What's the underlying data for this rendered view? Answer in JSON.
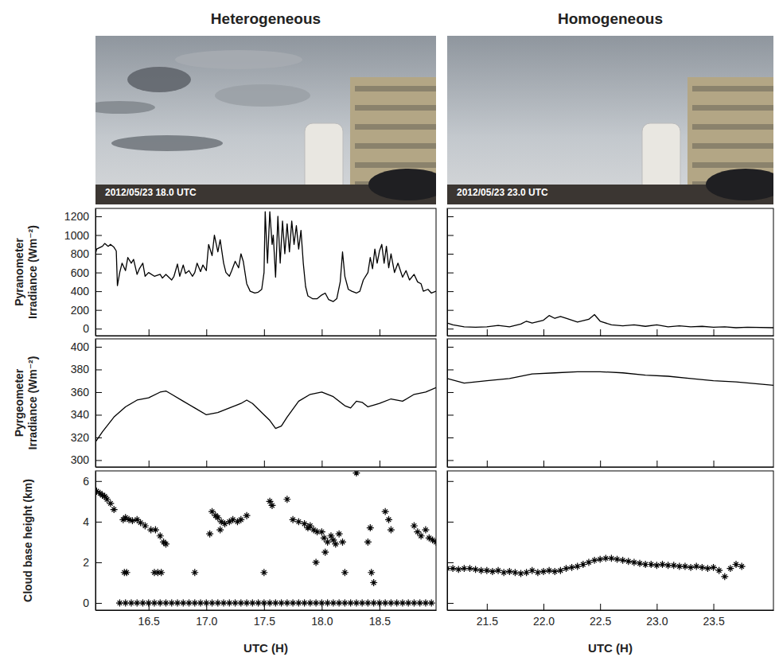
{
  "columns": [
    {
      "title": "Heterogeneous",
      "photo_caption": "2012/05/23 18.0 UTC"
    },
    {
      "title": "Homogeneous",
      "photo_caption": "2012/05/23 23.0 UTC"
    }
  ],
  "chart_data": [
    {
      "type": "line",
      "color": "#000000",
      "tick_labels": "y",
      "y_label": "Pyranometer Irradiance (Wm⁻²)",
      "xlim": [
        16.04,
        18.99
      ],
      "xticks": [
        16.5,
        17,
        17.5,
        18,
        18.5
      ],
      "ylim": [
        -75,
        1285
      ],
      "yticks": [
        0,
        200,
        400,
        600,
        800,
        1000,
        1200
      ],
      "x": [
        16.04,
        16.05,
        16.1,
        16.12,
        16.15,
        16.17,
        16.2,
        16.22,
        16.23,
        16.25,
        16.27,
        16.3,
        16.32,
        16.35,
        16.37,
        16.4,
        16.42,
        16.45,
        16.47,
        16.5,
        16.55,
        16.6,
        16.62,
        16.65,
        16.7,
        16.72,
        16.75,
        16.77,
        16.8,
        16.82,
        16.85,
        16.88,
        16.9,
        16.92,
        16.95,
        16.97,
        17.0,
        17.02,
        17.05,
        17.07,
        17.1,
        17.12,
        17.15,
        17.17,
        17.2,
        17.22,
        17.25,
        17.28,
        17.3,
        17.32,
        17.35,
        17.38,
        17.42,
        17.45,
        17.48,
        17.5,
        17.51,
        17.53,
        17.55,
        17.57,
        17.58,
        17.6,
        17.62,
        17.64,
        17.66,
        17.68,
        17.7,
        17.72,
        17.74,
        17.76,
        17.78,
        17.8,
        17.82,
        17.84,
        17.86,
        17.88,
        17.92,
        17.96,
        18.0,
        18.03,
        18.06,
        18.1,
        18.13,
        18.16,
        18.18,
        18.2,
        18.23,
        18.26,
        18.3,
        18.33,
        18.36,
        18.4,
        18.42,
        18.44,
        18.46,
        18.48,
        18.5,
        18.52,
        18.54,
        18.56,
        18.58,
        18.6,
        18.63,
        18.66,
        18.7,
        18.73,
        18.76,
        18.8,
        18.83,
        18.86,
        18.88,
        18.92,
        18.95,
        18.99
      ],
      "values": [
        800,
        850,
        880,
        910,
        880,
        900,
        870,
        830,
        460,
        600,
        700,
        620,
        760,
        700,
        740,
        580,
        640,
        700,
        560,
        600,
        560,
        580,
        540,
        580,
        520,
        560,
        690,
        560,
        680,
        590,
        620,
        560,
        600,
        700,
        610,
        680,
        620,
        900,
        780,
        1000,
        820,
        950,
        700,
        600,
        560,
        620,
        720,
        650,
        800,
        720,
        480,
        400,
        380,
        390,
        420,
        600,
        1250,
        700,
        1250,
        900,
        1000,
        550,
        1200,
        700,
        1150,
        800,
        1120,
        820,
        1150,
        900,
        1100,
        850,
        1050,
        700,
        450,
        350,
        320,
        320,
        360,
        380,
        310,
        290,
        320,
        500,
        820,
        560,
        420,
        400,
        380,
        400,
        520,
        600,
        760,
        640,
        850,
        700,
        830,
        900,
        700,
        880,
        650,
        800,
        600,
        700,
        550,
        620,
        520,
        580,
        500,
        480,
        400,
        420,
        380,
        400
      ]
    },
    {
      "type": "line",
      "color": "#000000",
      "tick_labels": false,
      "xlim": [
        21.15,
        24.03
      ],
      "xticks": [
        21.5,
        22,
        22.5,
        23,
        23.5
      ],
      "ylim": [
        -75,
        1285
      ],
      "yticks": [
        0,
        200,
        400,
        600,
        800,
        1000,
        1200
      ],
      "x": [
        21.15,
        21.2,
        21.3,
        21.4,
        21.5,
        21.6,
        21.7,
        21.8,
        21.85,
        21.9,
        22.0,
        22.05,
        22.1,
        22.15,
        22.2,
        22.3,
        22.4,
        22.45,
        22.5,
        22.6,
        22.7,
        22.8,
        22.9,
        23.0,
        23.1,
        23.2,
        23.3,
        23.4,
        23.5,
        23.6,
        23.7,
        23.8,
        24.03
      ],
      "values": [
        60,
        40,
        20,
        15,
        20,
        35,
        20,
        50,
        80,
        60,
        90,
        140,
        110,
        130,
        110,
        70,
        100,
        150,
        80,
        40,
        30,
        40,
        25,
        40,
        20,
        30,
        20,
        25,
        15,
        20,
        10,
        15,
        10
      ]
    },
    {
      "type": "line",
      "color": "#000000",
      "tick_labels": "y",
      "y_label": "Pyrgeometer Irradiance (Wm⁻²)",
      "xlim": [
        16.04,
        18.99
      ],
      "xticks": [
        16.5,
        17,
        17.5,
        18,
        18.5
      ],
      "ylim": [
        294,
        407
      ],
      "yticks": [
        300,
        320,
        340,
        360,
        380,
        400
      ],
      "x": [
        16.04,
        16.1,
        16.2,
        16.3,
        16.4,
        16.5,
        16.6,
        16.65,
        16.7,
        16.8,
        16.9,
        17.0,
        17.1,
        17.2,
        17.3,
        17.35,
        17.4,
        17.5,
        17.55,
        17.6,
        17.65,
        17.7,
        17.8,
        17.9,
        18.0,
        18.1,
        18.2,
        18.25,
        18.3,
        18.35,
        18.4,
        18.5,
        18.6,
        18.7,
        18.8,
        18.9,
        18.99
      ],
      "values": [
        316,
        325,
        338,
        347,
        353,
        355,
        360,
        361,
        358,
        352,
        346,
        340,
        342,
        346,
        350,
        353,
        350,
        340,
        335,
        328,
        330,
        338,
        352,
        358,
        360,
        356,
        348,
        346,
        352,
        351,
        347,
        350,
        354,
        352,
        358,
        360,
        364
      ]
    },
    {
      "type": "line",
      "color": "#000000",
      "tick_labels": false,
      "xlim": [
        21.15,
        24.03
      ],
      "xticks": [
        21.5,
        22,
        22.5,
        23,
        23.5
      ],
      "ylim": [
        294,
        407
      ],
      "yticks": [
        300,
        320,
        340,
        360,
        380,
        400
      ],
      "x": [
        21.15,
        21.3,
        21.5,
        21.7,
        21.9,
        22.1,
        22.3,
        22.5,
        22.7,
        22.9,
        23.1,
        23.3,
        23.5,
        23.7,
        24.03
      ],
      "values": [
        372,
        368,
        370,
        372,
        376,
        377,
        378,
        378,
        377,
        375,
        374,
        372,
        370,
        369,
        366
      ]
    },
    {
      "type": "scatter",
      "color": "#000000",
      "marker": "asterisk",
      "tick_labels": true,
      "y_label": "Cloud base height (km)",
      "x_label": "UTC (H)",
      "xlim": [
        16.04,
        18.99
      ],
      "xticks": [
        16.5,
        {
          "value": 17,
          "label": "17.0"
        },
        17.5,
        {
          "value": 18,
          "label": "18.0"
        },
        18.5
      ],
      "ylim": [
        -0.35,
        6.5
      ],
      "yticks": [
        0,
        2,
        4,
        6
      ],
      "x": [
        16.05,
        16.08,
        16.1,
        16.12,
        16.14,
        16.17,
        16.2,
        16.28,
        16.3,
        16.33,
        16.36,
        16.4,
        16.43,
        16.47,
        16.52,
        16.56,
        16.6,
        16.63,
        16.65,
        16.29,
        16.31,
        16.55,
        16.58,
        16.61,
        16.9,
        17.05,
        17.08,
        17.1,
        17.13,
        17.16,
        17.2,
        17.23,
        17.27,
        17.3,
        17.35,
        17.12,
        17.03,
        17.5,
        17.55,
        17.57,
        17.7,
        17.75,
        17.8,
        17.85,
        17.88,
        17.9,
        17.93,
        17.96,
        18.0,
        18.02,
        18.05,
        18.08,
        18.1,
        18.12,
        18.15,
        18.18,
        18.03,
        17.95,
        18.2,
        18.3,
        18.4,
        18.42,
        18.43,
        18.45,
        18.55,
        18.58,
        18.6,
        18.8,
        18.83,
        18.86,
        18.9,
        18.93,
        18.96,
        18.99,
        16.25,
        16.3,
        16.35,
        16.4,
        16.45,
        16.5,
        16.55,
        16.6,
        16.65,
        16.7,
        16.75,
        16.8,
        16.85,
        16.9,
        16.95,
        17.0,
        17.05,
        17.1,
        17.15,
        17.2,
        17.25,
        17.3,
        17.35,
        17.4,
        17.45,
        17.5,
        17.55,
        17.6,
        17.65,
        17.7,
        17.75,
        17.8,
        17.85,
        17.9,
        17.95,
        18.0,
        18.05,
        18.1,
        18.15,
        18.2,
        18.25,
        18.3,
        18.35,
        18.4,
        18.45,
        18.5,
        18.55,
        18.6,
        18.65,
        18.7,
        18.75,
        18.8,
        18.85,
        18.9,
        18.95
      ],
      "values": [
        5.5,
        5.4,
        5.3,
        5.25,
        5.1,
        4.9,
        4.6,
        4.1,
        4.2,
        4.1,
        4.05,
        4.1,
        3.95,
        3.8,
        3.6,
        3.6,
        3.3,
        3.0,
        2.9,
        1.5,
        1.5,
        1.5,
        1.5,
        1.5,
        1.5,
        4.5,
        4.3,
        4.2,
        4.0,
        3.9,
        4.0,
        4.1,
        4.0,
        4.1,
        4.3,
        3.6,
        3.4,
        1.5,
        5.0,
        4.8,
        5.1,
        4.1,
        4.0,
        3.9,
        3.7,
        3.8,
        3.6,
        3.5,
        3.5,
        3.2,
        3.0,
        3.3,
        3.1,
        2.9,
        3.4,
        3.0,
        2.5,
        2.0,
        1.5,
        6.4,
        3.0,
        3.7,
        1.5,
        1.0,
        4.5,
        4.1,
        3.6,
        3.8,
        3.5,
        3.3,
        3.6,
        3.2,
        3.1,
        3.0,
        0,
        0,
        0,
        0,
        0,
        0,
        0,
        0,
        0,
        0,
        0,
        0,
        0,
        0,
        0,
        0,
        0,
        0,
        0,
        0,
        0,
        0,
        0,
        0,
        0,
        0,
        0,
        0,
        0,
        0,
        0,
        0,
        0,
        0,
        0,
        0,
        0,
        0,
        0,
        0,
        0,
        0,
        0,
        0,
        0,
        0,
        0,
        0,
        0,
        0,
        0,
        0,
        0,
        0,
        0
      ]
    },
    {
      "type": "scatter",
      "color": "#000000",
      "marker": "asterisk",
      "tick_labels": "x",
      "x_label": "UTC (H)",
      "xlim": [
        21.15,
        24.03
      ],
      "xticks": [
        21.5,
        {
          "value": 22,
          "label": "22.0"
        },
        22.5,
        {
          "value": 23,
          "label": "23.0"
        },
        23.5
      ],
      "ylim": [
        -0.35,
        6.5
      ],
      "yticks": [
        0,
        2,
        4,
        6
      ],
      "x": [
        21.15,
        21.2,
        21.25,
        21.3,
        21.35,
        21.4,
        21.45,
        21.5,
        21.55,
        21.6,
        21.65,
        21.7,
        21.75,
        21.8,
        21.85,
        21.9,
        21.95,
        22.0,
        22.05,
        22.1,
        22.15,
        22.2,
        22.25,
        22.3,
        22.35,
        22.4,
        22.45,
        22.5,
        22.55,
        22.6,
        22.65,
        22.7,
        22.75,
        22.8,
        22.85,
        22.9,
        22.95,
        23.0,
        23.05,
        23.1,
        23.15,
        23.2,
        23.25,
        23.3,
        23.35,
        23.4,
        23.45,
        23.5,
        23.55,
        23.6,
        23.65,
        23.7,
        23.75
      ],
      "values": [
        1.7,
        1.7,
        1.65,
        1.7,
        1.7,
        1.65,
        1.6,
        1.6,
        1.55,
        1.6,
        1.5,
        1.55,
        1.5,
        1.45,
        1.5,
        1.6,
        1.5,
        1.55,
        1.6,
        1.55,
        1.6,
        1.7,
        1.75,
        1.8,
        1.9,
        2.0,
        2.1,
        2.15,
        2.2,
        2.2,
        2.15,
        2.1,
        2.05,
        2.0,
        1.95,
        1.9,
        1.9,
        1.85,
        1.9,
        1.85,
        1.85,
        1.8,
        1.8,
        1.75,
        1.8,
        1.75,
        1.7,
        1.75,
        1.6,
        1.3,
        1.7,
        1.9,
        1.8
      ]
    }
  ]
}
